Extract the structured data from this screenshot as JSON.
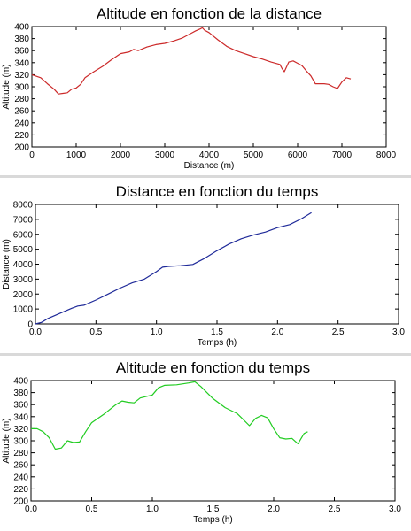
{
  "chart_data": [
    {
      "type": "line",
      "title": "Altitude en fonction de la distance",
      "xlabel": "Distance (m)",
      "ylabel": "Altitude (m)",
      "xlim": [
        0,
        8000
      ],
      "ylim": [
        200,
        400
      ],
      "xticks": [
        "0",
        "1000",
        "2000",
        "3000",
        "4000",
        "5000",
        "6000",
        "7000",
        "8000"
      ],
      "yticks": [
        "200",
        "220",
        "240",
        "260",
        "280",
        "300",
        "320",
        "340",
        "360",
        "380",
        "400"
      ],
      "grid": false,
      "color": "#cc2a2a",
      "x": [
        0,
        200,
        350,
        500,
        600,
        700,
        800,
        900,
        1000,
        1100,
        1200,
        1400,
        1600,
        1800,
        2000,
        2200,
        2300,
        2400,
        2600,
        2800,
        3000,
        3200,
        3400,
        3600,
        3700,
        3800,
        3850,
        3900,
        4000,
        4200,
        4400,
        4600,
        4800,
        5000,
        5200,
        5400,
        5600,
        5650,
        5700,
        5800,
        5900,
        6000,
        6100,
        6200,
        6300,
        6400,
        6600,
        6700,
        6800,
        6900,
        7000,
        7100,
        7200
      ],
      "y": [
        320,
        315,
        305,
        296,
        288,
        289,
        290,
        296,
        298,
        304,
        315,
        325,
        334,
        345,
        355,
        358,
        362,
        360,
        366,
        370,
        372,
        376,
        381,
        389,
        393,
        396,
        398,
        394,
        390,
        378,
        367,
        360,
        355,
        350,
        346,
        341,
        337,
        330,
        325,
        341,
        343,
        339,
        335,
        326,
        318,
        305,
        305,
        304,
        300,
        297,
        308,
        315,
        313
      ]
    },
    {
      "type": "line",
      "title": "Distance en fonction du temps",
      "xlabel": "Temps (h)",
      "ylabel": "Distance (m)",
      "xlim": [
        0,
        3
      ],
      "ylim": [
        0,
        8000
      ],
      "xticks": [
        "0.0",
        "0.5",
        "1.0",
        "1.5",
        "2.0",
        "2.5",
        "3.0"
      ],
      "yticks": [
        "0",
        "1000",
        "2000",
        "3000",
        "4000",
        "5000",
        "6000",
        "7000",
        "8000"
      ],
      "grid": false,
      "color": "#1f2a99",
      "x": [
        0,
        0.05,
        0.1,
        0.2,
        0.3,
        0.35,
        0.4,
        0.5,
        0.6,
        0.7,
        0.8,
        0.9,
        1.0,
        1.05,
        1.1,
        1.2,
        1.3,
        1.4,
        1.5,
        1.6,
        1.7,
        1.8,
        1.9,
        2.0,
        2.1,
        2.2,
        2.28
      ],
      "y": [
        0,
        100,
        350,
        700,
        1050,
        1200,
        1250,
        1600,
        2000,
        2400,
        2750,
        3000,
        3500,
        3800,
        3850,
        3900,
        3980,
        4400,
        4900,
        5350,
        5700,
        5950,
        6150,
        6450,
        6650,
        7050,
        7450
      ]
    },
    {
      "type": "line",
      "title": "Altitude en fonction du temps",
      "xlabel": "Temps (h)",
      "ylabel": "Altitude (m)",
      "xlim": [
        0,
        3
      ],
      "ylim": [
        200,
        400
      ],
      "xticks": [
        "0.0",
        "0.5",
        "1.0",
        "1.5",
        "2.0",
        "2.5",
        "3.0"
      ],
      "yticks": [
        "200",
        "220",
        "240",
        "260",
        "280",
        "300",
        "320",
        "340",
        "360",
        "380",
        "400"
      ],
      "grid": false,
      "color": "#22cc22",
      "x": [
        0,
        0.05,
        0.1,
        0.15,
        0.2,
        0.25,
        0.3,
        0.35,
        0.4,
        0.45,
        0.5,
        0.6,
        0.7,
        0.75,
        0.8,
        0.85,
        0.9,
        1.0,
        1.05,
        1.1,
        1.2,
        1.3,
        1.35,
        1.4,
        1.5,
        1.6,
        1.7,
        1.75,
        1.8,
        1.85,
        1.9,
        1.95,
        2.0,
        2.05,
        2.1,
        2.15,
        2.2,
        2.25,
        2.28
      ],
      "y": [
        320,
        320,
        315,
        305,
        286,
        288,
        300,
        297,
        298,
        315,
        330,
        344,
        360,
        366,
        364,
        363,
        371,
        376,
        388,
        392,
        393,
        396,
        398,
        390,
        370,
        355,
        345,
        335,
        325,
        337,
        342,
        338,
        320,
        305,
        303,
        304,
        295,
        312,
        315
      ]
    }
  ]
}
